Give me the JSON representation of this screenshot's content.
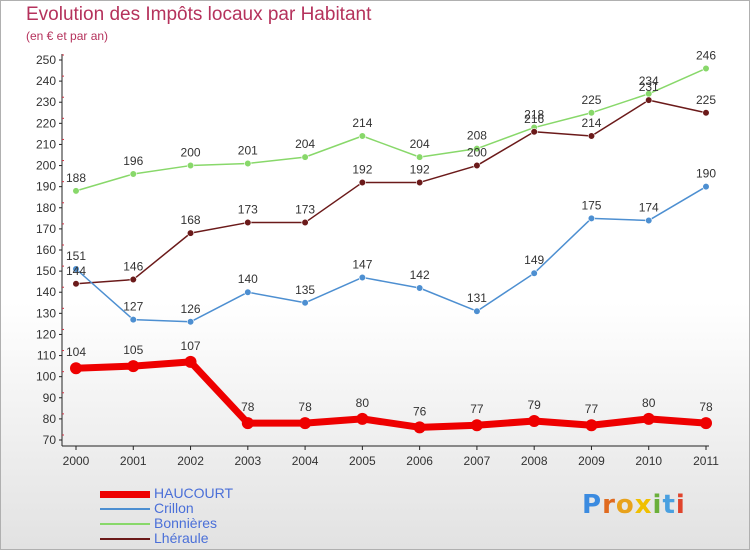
{
  "title": "Evolution des Impôts locaux par Habitant",
  "subtitle": "(en € et par an)",
  "logo": {
    "letters": [
      "P",
      "r",
      "o",
      "x",
      "i",
      "t",
      "i"
    ],
    "colors": [
      "#3b8be0",
      "#e06a1f",
      "#e8a21c",
      "#f0c000",
      "#6bb03b",
      "#4aa0e0",
      "#e0442c"
    ]
  },
  "chart_data": {
    "type": "line",
    "title": "Evolution des Impôts locaux par Habitant",
    "subtitle": "(en € et par an)",
    "xlabel": "",
    "ylabel": "",
    "ylim": [
      70,
      250
    ],
    "yticks": [
      70,
      80,
      90,
      100,
      110,
      120,
      130,
      140,
      150,
      160,
      170,
      180,
      190,
      200,
      210,
      220,
      230,
      240,
      250
    ],
    "grid": false,
    "legend": "bottom-left",
    "categories": [
      "2000",
      "2001",
      "2002",
      "2003",
      "2004",
      "2005",
      "2006",
      "2007",
      "2008",
      "2009",
      "2010",
      "2011"
    ],
    "series": [
      {
        "name": "HAUCOURT",
        "color": "#ee0000",
        "values": [
          104,
          105,
          107,
          78,
          78,
          80,
          76,
          77,
          79,
          77,
          80,
          78
        ]
      },
      {
        "name": "Crillon",
        "color": "#4d8fd1",
        "values": [
          151,
          127,
          126,
          140,
          135,
          147,
          142,
          131,
          149,
          175,
          174,
          190
        ]
      },
      {
        "name": "Bonnières",
        "color": "#88d86a",
        "values": [
          188,
          196,
          200,
          201,
          204,
          214,
          204,
          208,
          218,
          225,
          234,
          246
        ]
      },
      {
        "name": "Lhéraule",
        "color": "#6b1a1a",
        "values": [
          144,
          146,
          168,
          173,
          173,
          192,
          192,
          200,
          216,
          214,
          231,
          225
        ]
      }
    ]
  }
}
